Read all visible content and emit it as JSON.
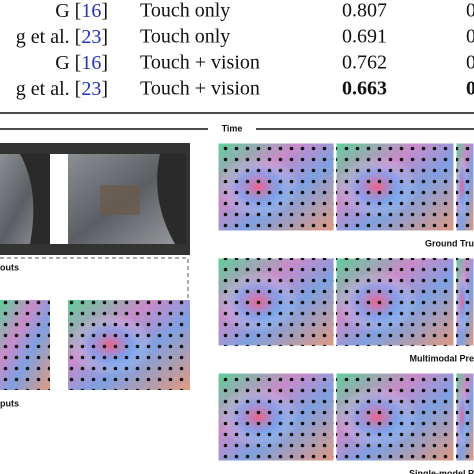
{
  "table": {
    "rows": [
      {
        "method": [
          "G [",
          "16",
          "]"
        ],
        "modality": "Touch only",
        "score": "0.807",
        "next": "0"
      },
      {
        "method": [
          "g et al. [",
          "23",
          "]"
        ],
        "modality": "Touch only",
        "score": "0.691",
        "next": "0"
      },
      {
        "method": [
          "G [",
          "16",
          "]"
        ],
        "modality": "Touch + vision",
        "score": "0.762",
        "next": "0"
      },
      {
        "method": [
          "g et al. [",
          "23",
          "]"
        ],
        "modality": "Touch + vision",
        "score": "0.663",
        "next": "0",
        "bold": true
      }
    ]
  },
  "figure": {
    "time_label": "Time",
    "left_top_label": "outs",
    "left_bottom_label": "puts",
    "right_labels": [
      "Ground Tru",
      "Multimodal Pre",
      "Single-model P"
    ]
  }
}
